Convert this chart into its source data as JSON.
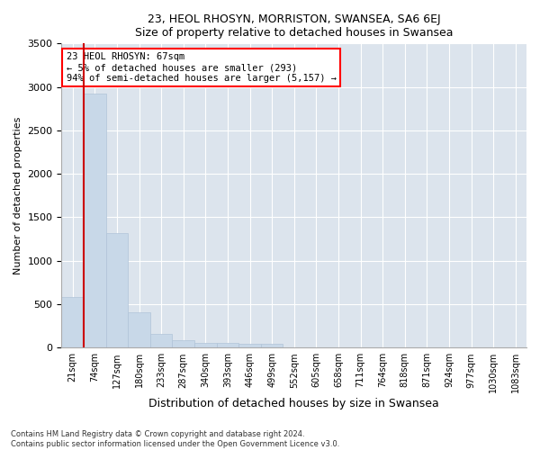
{
  "title": "23, HEOL RHOSYN, MORRISTON, SWANSEA, SA6 6EJ",
  "subtitle": "Size of property relative to detached houses in Swansea",
  "xlabel": "Distribution of detached houses by size in Swansea",
  "ylabel": "Number of detached properties",
  "footer_line1": "Contains HM Land Registry data © Crown copyright and database right 2024.",
  "footer_line2": "Contains public sector information licensed under the Open Government Licence v3.0.",
  "annotation_title": "23 HEOL RHOSYN: 67sqm",
  "annotation_line1": "← 5% of detached houses are smaller (293)",
  "annotation_line2": "94% of semi-detached houses are larger (5,157) →",
  "bar_color": "#c8d8e8",
  "bar_edge_color": "#b0c4d8",
  "marker_color": "#cc0000",
  "background_color": "#dce4ed",
  "categories": [
    "21sqm",
    "74sqm",
    "127sqm",
    "180sqm",
    "233sqm",
    "287sqm",
    "340sqm",
    "393sqm",
    "446sqm",
    "499sqm",
    "552sqm",
    "605sqm",
    "658sqm",
    "711sqm",
    "764sqm",
    "818sqm",
    "871sqm",
    "924sqm",
    "977sqm",
    "1030sqm",
    "1083sqm"
  ],
  "values": [
    580,
    2920,
    1320,
    410,
    155,
    85,
    60,
    55,
    45,
    40,
    0,
    0,
    0,
    0,
    0,
    0,
    0,
    0,
    0,
    0,
    0
  ],
  "ylim": [
    0,
    3500
  ],
  "yticks": [
    0,
    500,
    1000,
    1500,
    2000,
    2500,
    3000,
    3500
  ]
}
